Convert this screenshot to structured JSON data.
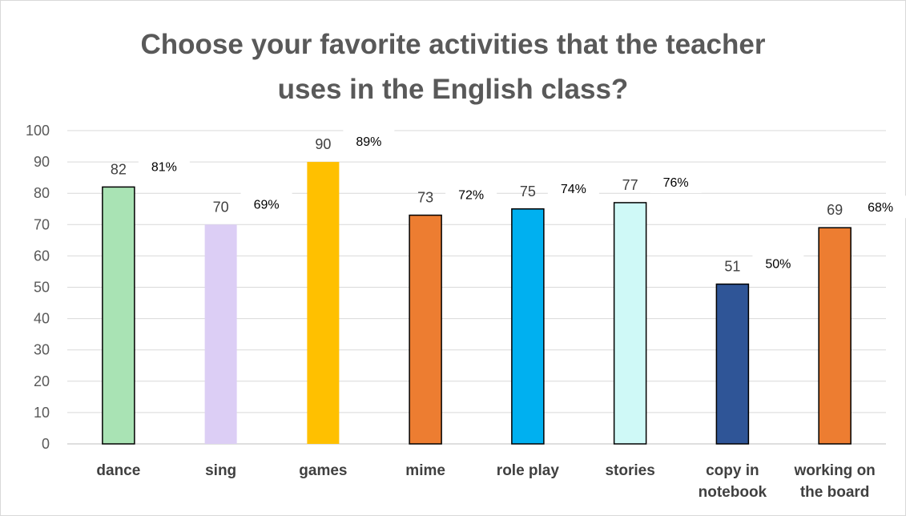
{
  "chart_data": {
    "type": "bar",
    "title": [
      "Choose your favorite activities that the teacher",
      "uses in the English class?"
    ],
    "categories": [
      [
        "dance"
      ],
      [
        "sing"
      ],
      [
        "games"
      ],
      [
        "mime"
      ],
      [
        "role play"
      ],
      [
        "stories"
      ],
      [
        "copy in",
        "notebook"
      ],
      [
        "working on",
        "the board"
      ]
    ],
    "values": [
      82,
      70,
      90,
      73,
      75,
      77,
      51,
      69
    ],
    "percent_labels": [
      "81%",
      "69%",
      "89%",
      "72%",
      "74%",
      "76%",
      "50%",
      "68%"
    ],
    "colors": [
      "#a9e3b4",
      "#dccef5",
      "#ffc000",
      "#ed7d31",
      "#00b0f0",
      "#cff9f7",
      "#2f5597",
      "#ed7d31"
    ],
    "bar_outline": [
      "#000000",
      "none",
      "none",
      "#000000",
      "#000000",
      "#000000",
      "#000000",
      "#000000"
    ],
    "ylim": [
      0,
      100
    ],
    "yticks": [
      0,
      10,
      20,
      30,
      40,
      50,
      60,
      70,
      80,
      90,
      100
    ],
    "grid": true,
    "legend": "none"
  }
}
